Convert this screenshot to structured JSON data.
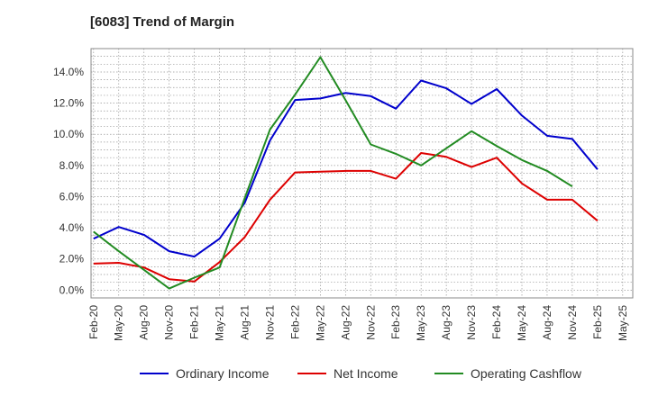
{
  "chart_data": {
    "type": "line",
    "title": "[6083]  Trend of Margin",
    "xlabel": "",
    "ylabel": "",
    "categories": [
      "Feb-20",
      "May-20",
      "Aug-20",
      "Nov-20",
      "Feb-21",
      "May-21",
      "Aug-21",
      "Nov-21",
      "Feb-22",
      "May-22",
      "Aug-22",
      "Nov-22",
      "Feb-23",
      "May-23",
      "Aug-23",
      "Nov-23",
      "Feb-24",
      "May-24",
      "Aug-24",
      "Nov-24",
      "Feb-25",
      "May-25"
    ],
    "y_ticks": [
      "0.0%",
      "2.0%",
      "4.0%",
      "6.0%",
      "8.0%",
      "10.0%",
      "12.0%",
      "14.0%"
    ],
    "ylim": [
      -0.5,
      15.5
    ],
    "grid": true,
    "legend_position": "bottom",
    "series": [
      {
        "name": "Ordinary Income",
        "color": "#0000cc",
        "values": [
          3.3,
          4.05,
          3.55,
          2.5,
          2.15,
          3.3,
          5.6,
          9.6,
          12.2,
          12.3,
          12.65,
          12.45,
          11.65,
          13.45,
          12.95,
          11.95,
          12.9,
          11.2,
          9.9,
          9.7,
          7.75,
          null
        ]
      },
      {
        "name": "Net Income",
        "color": "#dd0000",
        "values": [
          1.7,
          1.75,
          1.45,
          0.7,
          0.55,
          1.8,
          3.4,
          5.8,
          7.55,
          7.6,
          7.65,
          7.65,
          7.15,
          8.8,
          8.55,
          7.9,
          8.5,
          6.85,
          5.8,
          5.8,
          4.45,
          null
        ]
      },
      {
        "name": "Operating Cashflow",
        "color": "#228b22",
        "values": [
          3.75,
          2.5,
          1.3,
          0.1,
          0.8,
          1.45,
          5.9,
          10.3,
          12.55,
          14.95,
          12.2,
          9.35,
          8.75,
          8.0,
          9.1,
          10.2,
          9.25,
          8.35,
          7.65,
          6.65,
          null,
          null
        ]
      }
    ]
  }
}
